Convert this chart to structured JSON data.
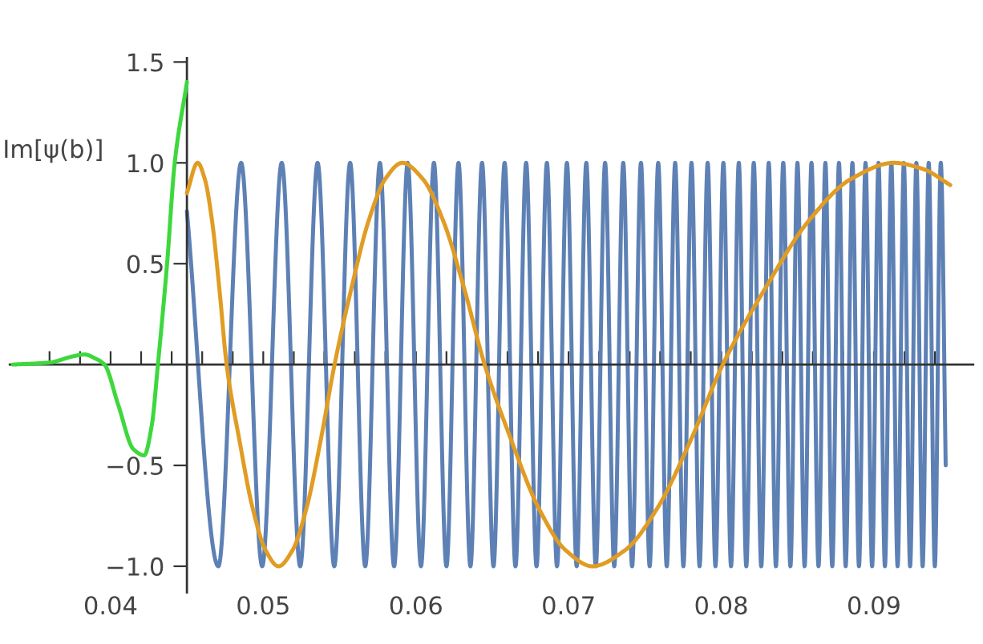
{
  "chart_data": {
    "type": "line",
    "ylabel": "Im[ψ(b)]",
    "xlim": [
      0.0334,
      0.0965
    ],
    "ylim": [
      -1.13,
      1.52
    ],
    "xticks": [
      {
        "value": 0.036,
        "label": null
      },
      {
        "value": 0.038,
        "label": null
      },
      0.04,
      {
        "value": 0.042,
        "label": null
      },
      {
        "value": 0.044,
        "label": null
      },
      {
        "value": 0.046,
        "label": null
      },
      {
        "value": 0.048,
        "label": null
      },
      0.05,
      {
        "value": 0.052,
        "label": null
      },
      {
        "value": 0.054,
        "label": null
      },
      {
        "value": 0.056,
        "label": null
      },
      {
        "value": 0.058,
        "label": null
      },
      0.06,
      {
        "value": 0.062,
        "label": null
      },
      {
        "value": 0.064,
        "label": null
      },
      {
        "value": 0.066,
        "label": null
      },
      {
        "value": 0.068,
        "label": null
      },
      0.07,
      {
        "value": 0.072,
        "label": null
      },
      {
        "value": 0.074,
        "label": null
      },
      {
        "value": 0.076,
        "label": null
      },
      {
        "value": 0.078,
        "label": null
      },
      0.08,
      {
        "value": 0.082,
        "label": null
      },
      {
        "value": 0.084,
        "label": null
      },
      {
        "value": 0.086,
        "label": null
      },
      {
        "value": 0.088,
        "label": null
      },
      0.09,
      {
        "value": 0.092,
        "label": null
      },
      {
        "value": 0.094,
        "label": null
      }
    ],
    "yticks": [
      {
        "value": -1.0,
        "label": "−1.0"
      },
      {
        "value": -0.5,
        "label": "−0.5"
      },
      0.5,
      {
        "value": 1.0,
        "label": "1.0"
      },
      1.5
    ],
    "grid": false,
    "marker": "none",
    "line_style": "solid",
    "series": [
      {
        "color": "#5e81b5",
        "x": [
          0.045,
          0.04706,
          0.04855,
          0.04993,
          0.05121,
          0.05242,
          0.05356,
          0.05465,
          0.05569,
          0.05668,
          0.05764,
          0.05857,
          0.05946,
          0.06033,
          0.06118,
          0.062,
          0.06279,
          0.06357,
          0.06433,
          0.06508,
          0.06581,
          0.06652,
          0.06722,
          0.0679,
          0.06858,
          0.06924,
          0.06989,
          0.07053,
          0.07116,
          0.07178,
          0.07239,
          0.07299,
          0.07358,
          0.07416,
          0.07474,
          0.07531,
          0.07587,
          0.07643,
          0.07698,
          0.07752,
          0.07805,
          0.07858,
          0.07911,
          0.07962,
          0.08014,
          0.08064,
          0.08115,
          0.08164,
          0.08213,
          0.08262,
          0.08311,
          0.08358,
          0.08406,
          0.08453,
          0.08499,
          0.08546,
          0.08591,
          0.08637,
          0.08682,
          0.08727,
          0.08771,
          0.08815,
          0.08859,
          0.08902,
          0.08945,
          0.08988,
          0.0903,
          0.09072,
          0.09114,
          0.09155,
          0.09196,
          0.09237,
          0.09278,
          0.09319,
          0.09359,
          0.09399,
          0.09438,
          0.0947
        ],
        "values": [
          0.76,
          -1,
          1,
          -1,
          1,
          -1,
          1,
          -1,
          1,
          -1,
          1,
          -1,
          1,
          -1,
          1,
          -1,
          1,
          -1,
          1,
          -1,
          1,
          -1,
          1,
          -1,
          1,
          -1,
          1,
          -1,
          1,
          -1,
          1,
          -1,
          1,
          -1,
          1,
          -1,
          1,
          -1,
          1,
          -1,
          1,
          -1,
          1,
          -1,
          1,
          -1,
          1,
          -1,
          1,
          -1,
          1,
          -1,
          1,
          -1,
          1,
          -1,
          1,
          -1,
          1,
          -1,
          1,
          -1,
          1,
          -1,
          1,
          -1,
          1,
          -1,
          1,
          -1,
          1,
          -1,
          1,
          -1,
          1,
          -1,
          1,
          -0.5
        ]
      },
      {
        "color": "#e19c24",
        "x": [
          0.045,
          0.0457,
          0.04617,
          0.04665,
          0.04712,
          0.0476,
          0.04845,
          0.0493,
          0.05015,
          0.051,
          0.05192,
          0.05284,
          0.05375,
          0.05467,
          0.05578,
          0.05689,
          0.05799,
          0.0591,
          0.06045,
          0.0618,
          0.06315,
          0.0645,
          0.06627,
          0.06803,
          0.0698,
          0.07156,
          0.0737,
          0.07583,
          0.07797,
          0.0801,
          0.0829,
          0.0857,
          0.0885,
          0.0913,
          0.0932,
          0.095
        ],
        "values": [
          0.85,
          1,
          0.92,
          0.71,
          0.38,
          0,
          -0.38,
          -0.71,
          -0.92,
          -1,
          -0.92,
          -0.71,
          -0.38,
          0,
          0.38,
          0.71,
          0.92,
          1,
          0.92,
          0.71,
          0.38,
          0,
          -0.38,
          -0.71,
          -0.92,
          -1,
          -0.92,
          -0.71,
          -0.38,
          0,
          0.38,
          0.71,
          0.92,
          1,
          0.97,
          0.89
        ]
      },
      {
        "color": "#3ed83e",
        "x": [
          0.0336,
          0.036,
          0.0375,
          0.0383,
          0.039,
          0.0396,
          0.0405,
          0.0415,
          0.0422,
          0.0427,
          0.0431,
          0.0437,
          0.0442,
          0.045
        ],
        "values": [
          0.0,
          0.01,
          0.04,
          0.05,
          0.03,
          0.0,
          -0.2,
          -0.42,
          -0.45,
          -0.3,
          0.0,
          0.5,
          1.0,
          1.4
        ]
      }
    ]
  }
}
